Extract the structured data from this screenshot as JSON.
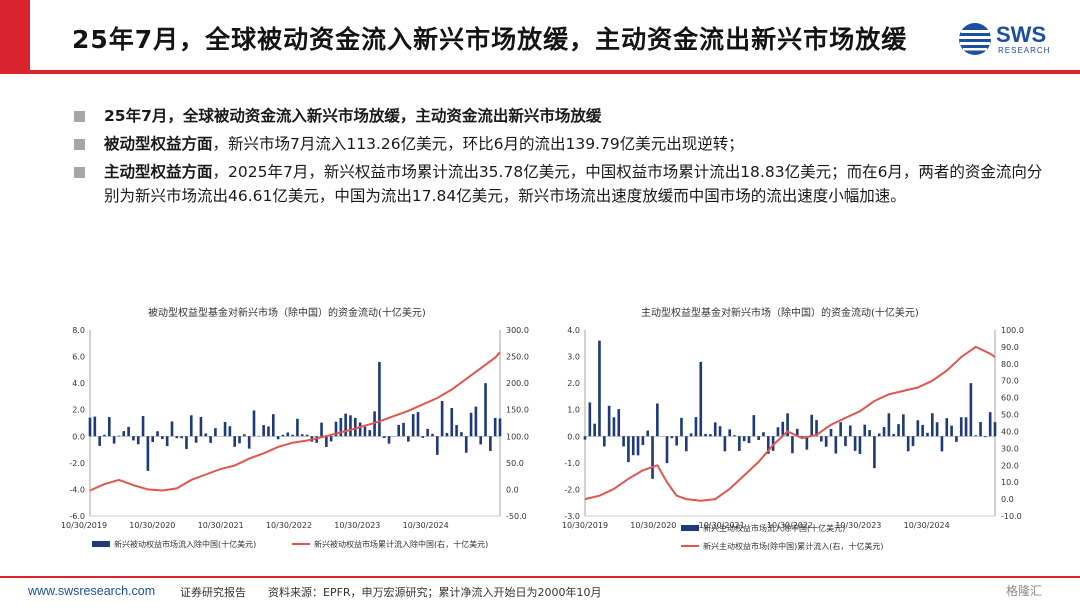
{
  "header": {
    "title": "25年7月，全球被动资金流入新兴市场放缓，主动资金流出新兴市场放缓",
    "logo_text": "SWS",
    "logo_sub": "RESEARCH",
    "brand_color": "#d9232e",
    "logo_color": "#1c4fa0"
  },
  "bullets": [
    {
      "strong": "25年7月，全球被动资金流入新兴市场放缓，主动资金流出新兴市场放缓",
      "text": ""
    },
    {
      "strong": "被动型权益方面",
      "text": "，新兴市场7月流入113.26亿美元，环比6月的流出139.79亿美元出现逆转；"
    },
    {
      "strong": "主动型权益方面",
      "text": "，2025年7月，新兴权益市场累计流出35.78亿美元，中国权益市场累计流出18.83亿美元；而在6月，两者的资金流向分别为新兴市场流出46.61亿美元，中国为流出17.84亿美元，新兴市场流出速度放缓而中国市场的流出速度小幅加速。"
    }
  ],
  "chart_data": [
    {
      "type": "bar+line",
      "title": "被动型权益型基金对新兴市场（除中国）的资金流动(十亿美元)",
      "x_tick_labels": [
        "10/30/2019",
        "10/30/2020",
        "10/30/2021",
        "10/30/2022",
        "10/30/2023",
        "10/30/2024"
      ],
      "left_axis": {
        "ylim": [
          -6.0,
          8.0
        ],
        "ticks": [
          "8.0",
          "6.0",
          "4.0",
          "2.0",
          "0.0",
          "-2.0",
          "-4.0",
          "-6.0"
        ]
      },
      "right_axis": {
        "ylim": [
          -50.0,
          300.0
        ],
        "ticks": [
          "300.0",
          "250.0",
          "200.0",
          "150.0",
          "100.0",
          "50.0",
          "0.0",
          "-50.0"
        ]
      },
      "series": [
        {
          "name": "新兴被动权益市场流入除中国(十亿美元)",
          "kind": "bar",
          "axis": "left",
          "color": "#1f3a7a"
        },
        {
          "name": "新兴被动权益市场累计流入除中国(右，十亿美元)",
          "kind": "line",
          "axis": "right",
          "color": "#e0564f",
          "points": [
            [
              0,
              -2
            ],
            [
              3,
              10
            ],
            [
              6,
              18
            ],
            [
              9,
              8
            ],
            [
              12,
              0
            ],
            [
              15,
              -2
            ],
            [
              18,
              2
            ],
            [
              21,
              18
            ],
            [
              24,
              28
            ],
            [
              27,
              38
            ],
            [
              30,
              45
            ],
            [
              33,
              58
            ],
            [
              36,
              68
            ],
            [
              39,
              80
            ],
            [
              42,
              88
            ],
            [
              45,
              92
            ],
            [
              48,
              98
            ],
            [
              51,
              105
            ],
            [
              54,
              112
            ],
            [
              57,
              120
            ],
            [
              60,
              128
            ],
            [
              63,
              138
            ],
            [
              66,
              148
            ],
            [
              69,
              160
            ],
            [
              72,
              172
            ],
            [
              75,
              188
            ],
            [
              78,
              208
            ],
            [
              81,
              228
            ],
            [
              84,
              248
            ],
            [
              85,
              258
            ]
          ]
        }
      ]
    },
    {
      "type": "bar+line",
      "title": "主动型权益型基金对新兴市场（除中国）的资金流动(十亿美元)",
      "x_tick_labels": [
        "10/30/2019",
        "10/30/2020",
        "10/30/2021",
        "10/30/2022",
        "10/30/2023",
        "10/30/2024"
      ],
      "left_axis": {
        "ylim": [
          -3.0,
          4.0
        ],
        "ticks": [
          "4.0",
          "3.0",
          "2.0",
          "1.0",
          "0.0",
          "-1.0",
          "-2.0",
          "-3.0"
        ]
      },
      "right_axis": {
        "ylim": [
          -10.0,
          100.0
        ],
        "ticks": [
          "100.0",
          "90.0",
          "80.0",
          "70.0",
          "60.0",
          "50.0",
          "40.0",
          "30.0",
          "20.0",
          "10.0",
          "0.0",
          "-10.0"
        ]
      },
      "series": [
        {
          "name": "新兴主动权益市场流入除中国(十亿美元)",
          "kind": "bar",
          "axis": "left",
          "color": "#1f3a7a"
        },
        {
          "name": "新兴主动权益市场(除中国)累计流入(右，十亿美元)",
          "kind": "line",
          "axis": "right",
          "color": "#e0564f",
          "points": [
            [
              0,
              0
            ],
            [
              3,
              2
            ],
            [
              6,
              6
            ],
            [
              9,
              12
            ],
            [
              12,
              17
            ],
            [
              15,
              20
            ],
            [
              17,
              10
            ],
            [
              19,
              2
            ],
            [
              21,
              0
            ],
            [
              24,
              -1
            ],
            [
              27,
              0
            ],
            [
              30,
              6
            ],
            [
              33,
              14
            ],
            [
              36,
              22
            ],
            [
              39,
              32
            ],
            [
              42,
              40
            ],
            [
              45,
              36
            ],
            [
              48,
              38
            ],
            [
              51,
              44
            ],
            [
              54,
              48
            ],
            [
              57,
              52
            ],
            [
              60,
              58
            ],
            [
              63,
              62
            ],
            [
              66,
              64
            ],
            [
              69,
              66
            ],
            [
              72,
              70
            ],
            [
              75,
              76
            ],
            [
              78,
              84
            ],
            [
              81,
              90
            ],
            [
              84,
              86
            ],
            [
              85,
              84
            ]
          ]
        }
      ]
    }
  ],
  "footer": {
    "url": "www.swsresearch.com",
    "type": "证券研究报告",
    "source": "资料来源：EPFR，申万宏源研究；累计净流入开始日为2000年10月",
    "watermark": "格隆汇"
  }
}
